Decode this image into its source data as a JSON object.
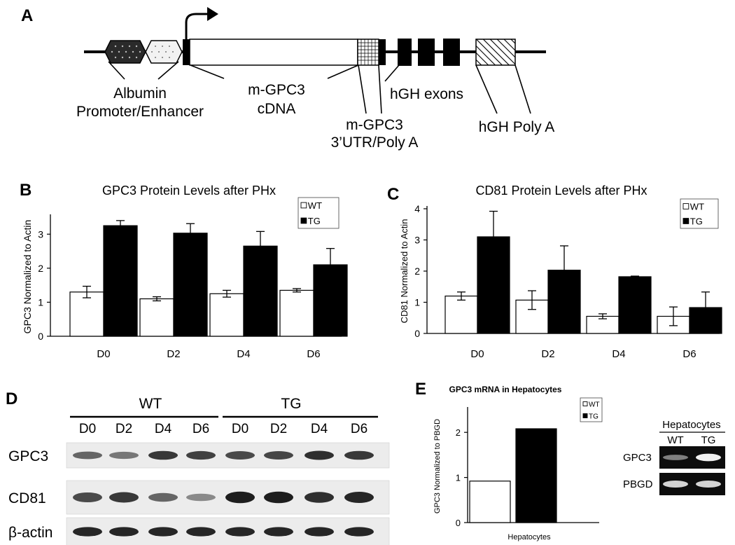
{
  "panel_labels": {
    "a": "A",
    "b": "B",
    "c": "C",
    "d": "D",
    "e": "E"
  },
  "panel_a": {
    "labels": {
      "albumin_line1": "Albumin",
      "albumin_line2": "Promoter/Enhancer",
      "cdna_line1": "m-GPC3",
      "cdna_line2": "cDNA",
      "utr_line1": "m-GPC3",
      "utr_line2": "3’UTR/Poly A",
      "hgh_exons": "hGH exons",
      "hgh_polya": "hGH Poly A"
    }
  },
  "chart_data": [
    {
      "id": "b",
      "type": "bar",
      "title": "GPC3 Protein Levels after PHx",
      "ylabel": "GPC3 Normalized to Actin",
      "xlabel": "",
      "categories": [
        "D0",
        "D2",
        "D4",
        "D6"
      ],
      "ylim": [
        0,
        3.5
      ],
      "yticks": [
        0,
        1,
        2,
        3
      ],
      "legend_position": "top-right",
      "series": [
        {
          "name": "WT",
          "color": "#ffffff",
          "values": [
            1.3,
            1.1,
            1.25,
            1.35
          ],
          "errors": [
            0.17,
            0.06,
            0.1,
            0.05
          ]
        },
        {
          "name": "TG",
          "color": "#000000",
          "values": [
            3.25,
            3.03,
            2.65,
            2.1
          ],
          "errors": [
            0.15,
            0.28,
            0.43,
            0.48
          ]
        }
      ]
    },
    {
      "id": "c",
      "type": "bar",
      "title": "CD81 Protein Levels after PHx",
      "ylabel": "CD81 Normalized to Actin",
      "xlabel": "",
      "categories": [
        "D0",
        "D2",
        "D4",
        "D6"
      ],
      "ylim": [
        0,
        4
      ],
      "yticks": [
        0,
        1,
        2,
        3,
        4
      ],
      "legend_position": "top-right",
      "series": [
        {
          "name": "WT",
          "color": "#ffffff",
          "values": [
            1.2,
            1.07,
            0.55,
            0.55
          ],
          "errors": [
            0.13,
            0.3,
            0.08,
            0.3
          ]
        },
        {
          "name": "TG",
          "color": "#000000",
          "values": [
            3.1,
            2.03,
            1.82,
            0.83
          ],
          "errors": [
            0.82,
            0.78,
            0.02,
            0.5
          ]
        }
      ]
    },
    {
      "id": "e",
      "type": "bar",
      "title": "GPC3 mRNA in Hepatocytes",
      "ylabel": "GPC3 Normalized to PBGD",
      "xlabel": "Hepatocytes",
      "categories": [
        "Hepatocytes"
      ],
      "ylim": [
        0,
        2.5
      ],
      "yticks": [
        0,
        1,
        2
      ],
      "legend_position": "top-right",
      "series": [
        {
          "name": "WT",
          "color": "#ffffff",
          "values": [
            0.92
          ]
        },
        {
          "name": "TG",
          "color": "#000000",
          "values": [
            2.08
          ]
        }
      ]
    }
  ],
  "panel_d": {
    "groups": [
      "WT",
      "TG"
    ],
    "lanes": [
      "D0",
      "D2",
      "D4",
      "D6",
      "D0",
      "D2",
      "D4",
      "D6"
    ],
    "rows": [
      {
        "label": "GPC3",
        "intensity": [
          0.55,
          0.45,
          0.8,
          0.75,
          0.7,
          0.72,
          0.85,
          0.8
        ]
      },
      {
        "label": "CD81",
        "intensity": [
          0.7,
          0.8,
          0.55,
          0.35,
          0.95,
          0.95,
          0.85,
          0.9
        ]
      },
      {
        "label": "β-actin",
        "intensity": [
          0.9,
          0.9,
          0.9,
          0.9,
          0.9,
          0.9,
          0.9,
          0.9
        ]
      }
    ]
  },
  "panel_e_gel": {
    "header": "Hepatocytes",
    "lanes": [
      "WT",
      "TG"
    ],
    "rows": [
      {
        "label": "GPC3",
        "intensity": [
          0.35,
          0.95
        ]
      },
      {
        "label": "PBGD",
        "intensity": [
          0.8,
          0.8
        ]
      }
    ]
  }
}
